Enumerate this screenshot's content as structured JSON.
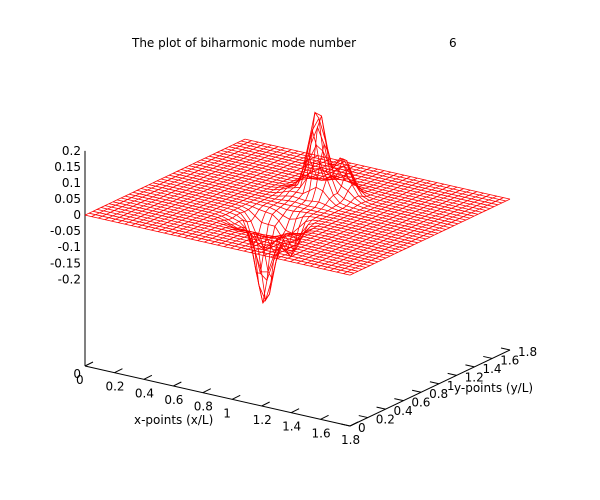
{
  "chart_data": {
    "type": "surface",
    "title": "The plot of biharmonic mode number",
    "mode_number": "6",
    "xlabel": "x-points (x/L)",
    "ylabel": "y-points (y/L)",
    "x_ticks": [
      "0",
      "0.2",
      "0.4",
      "0.6",
      "0.8",
      "1",
      "1.2",
      "1.4",
      "1.6",
      "1.8"
    ],
    "y_ticks": [
      "0",
      "0.2",
      "0.4",
      "0.6",
      "0.8",
      "1",
      "1.2",
      "1.4",
      "1.6",
      "1.8"
    ],
    "z_ticks": [
      "0.2",
      "0.15",
      "0.1",
      "0.05",
      "0",
      "-0.05",
      "-0.1",
      "-0.15",
      "-0.2"
    ],
    "xlim": [
      0,
      1.8
    ],
    "ylim": [
      0,
      1.8
    ],
    "zlim": [
      -0.2,
      0.2
    ],
    "surface": {
      "grid_points": 40,
      "peaks": [
        {
          "x": 0.9,
          "y": 1.2,
          "z": 0.2
        },
        {
          "x": 0.9,
          "y": 0.6,
          "z": -0.2
        }
      ]
    },
    "mesh_color": "#ff0000",
    "hidden_line_color": "#000000"
  }
}
